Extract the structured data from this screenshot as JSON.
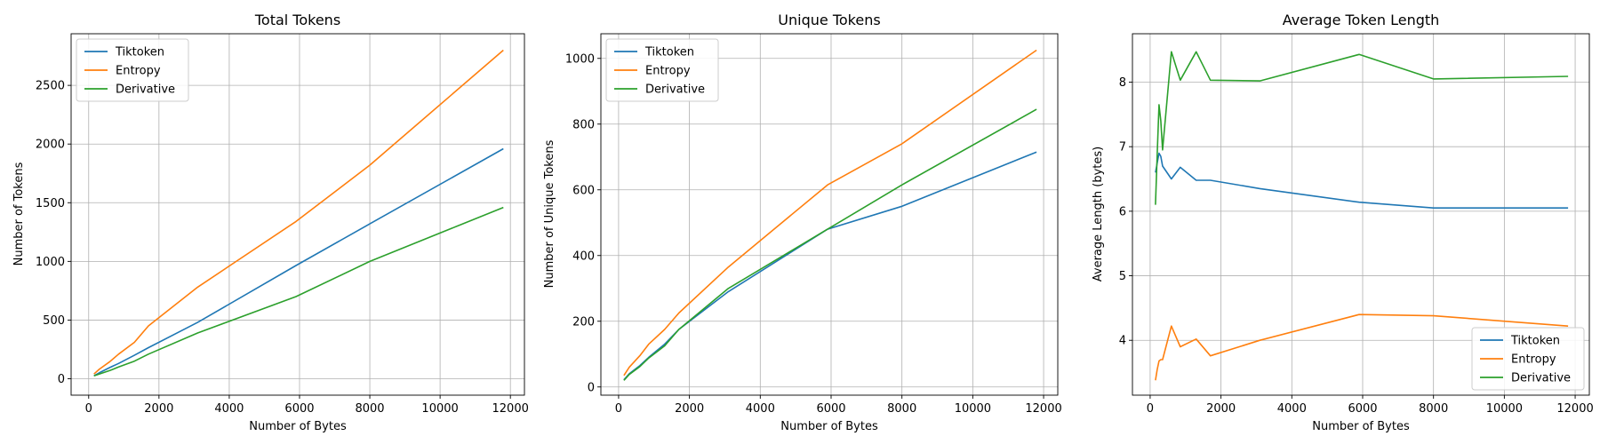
{
  "chart_data": [
    {
      "type": "line",
      "title": "Total Tokens",
      "xlabel": "Number of Bytes",
      "ylabel": "Number of Tokens",
      "xlim": [
        -500,
        12400
      ],
      "ylim": [
        -140,
        2940
      ],
      "xticks": [
        0,
        2000,
        4000,
        6000,
        8000,
        10000,
        12000
      ],
      "yticks": [
        0,
        500,
        1000,
        1500,
        2000,
        2500
      ],
      "grid": true,
      "legend_position": "upper-left",
      "x": [
        150,
        300,
        600,
        850,
        1300,
        1700,
        3100,
        5900,
        8000,
        11800
      ],
      "series": [
        {
          "name": "Tiktoken",
          "color": "#1f77b4",
          "values": [
            25,
            50,
            95,
            130,
            200,
            265,
            480,
            965,
            1320,
            1960
          ]
        },
        {
          "name": "Entropy",
          "color": "#ff7f0e",
          "values": [
            40,
            80,
            145,
            210,
            310,
            450,
            780,
            1340,
            1820,
            2800
          ]
        },
        {
          "name": "Derivative",
          "color": "#2ca02c",
          "values": [
            25,
            40,
            70,
            100,
            150,
            210,
            390,
            700,
            1000,
            1460
          ]
        }
      ]
    },
    {
      "type": "line",
      "title": "Unique Tokens",
      "xlabel": "Number of Bytes",
      "ylabel": "Number of Unique Tokens",
      "xlim": [
        -500,
        12400
      ],
      "ylim": [
        -25,
        1075
      ],
      "xticks": [
        0,
        2000,
        4000,
        6000,
        8000,
        10000,
        12000
      ],
      "yticks": [
        0,
        200,
        400,
        600,
        800,
        1000
      ],
      "grid": true,
      "legend_position": "upper-left",
      "x": [
        150,
        300,
        600,
        850,
        1300,
        1700,
        3100,
        5900,
        8000,
        11800
      ],
      "series": [
        {
          "name": "Tiktoken",
          "color": "#1f77b4",
          "values": [
            22,
            40,
            65,
            90,
            130,
            175,
            290,
            480,
            550,
            715
          ]
        },
        {
          "name": "Entropy",
          "color": "#ff7f0e",
          "values": [
            35,
            60,
            95,
            130,
            175,
            225,
            365,
            615,
            740,
            1025
          ]
        },
        {
          "name": "Derivative",
          "color": "#2ca02c",
          "values": [
            20,
            38,
            62,
            88,
            125,
            175,
            300,
            480,
            615,
            845
          ]
        }
      ]
    },
    {
      "type": "line",
      "title": "Average Token Length",
      "xlabel": "Number of Bytes",
      "ylabel": "Average Length (bytes)",
      "xlim": [
        -500,
        12400
      ],
      "ylim": [
        3.15,
        8.75
      ],
      "xticks": [
        0,
        2000,
        4000,
        6000,
        8000,
        10000,
        12000
      ],
      "yticks": [
        4,
        5,
        6,
        7,
        8
      ],
      "grid": true,
      "legend_position": "lower-right",
      "x": [
        150,
        200,
        250,
        300,
        350,
        600,
        850,
        1300,
        1700,
        3100,
        5900,
        8000,
        11800
      ],
      "series": [
        {
          "name": "Tiktoken",
          "color": "#1f77b4",
          "values": [
            6.6,
            6.75,
            6.9,
            6.85,
            6.7,
            6.5,
            6.68,
            6.48,
            6.48,
            6.35,
            6.14,
            6.05,
            6.05
          ]
        },
        {
          "name": "Entropy",
          "color": "#ff7f0e",
          "values": [
            3.38,
            3.55,
            3.68,
            3.7,
            3.7,
            4.22,
            3.9,
            4.02,
            3.76,
            4.0,
            4.4,
            4.38,
            4.22
          ]
        },
        {
          "name": "Derivative",
          "color": "#2ca02c",
          "values": [
            6.1,
            6.9,
            7.65,
            7.4,
            6.95,
            8.47,
            8.03,
            8.47,
            8.03,
            8.02,
            8.43,
            8.05,
            8.09
          ]
        }
      ]
    }
  ]
}
